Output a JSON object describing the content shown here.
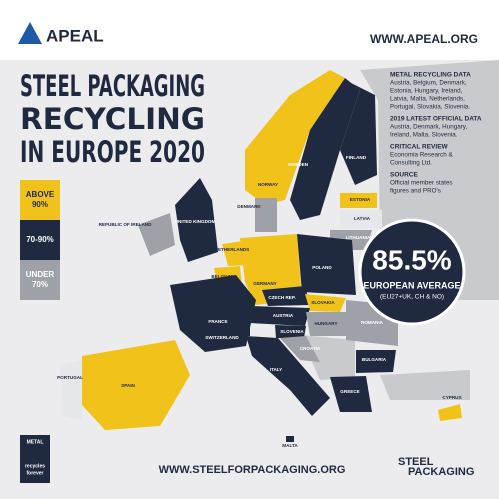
{
  "header": {
    "brand": "APEAL",
    "website": "WWW.APEAL.ORG"
  },
  "title": [
    "STEEL PACKAGING",
    "RECYCLING",
    "IN EUROPE 2020"
  ],
  "legend": [
    {
      "label": [
        "ABOVE",
        "90%"
      ]
    },
    {
      "label": [
        "70-90%"
      ]
    },
    {
      "label": [
        "UNDER",
        "70%"
      ]
    }
  ],
  "notes": [
    {
      "heading": "METAL RECYCLING DATA",
      "text": [
        "Austria, Belgium, Denmark,",
        "Estonia, Hungary, Ireland,",
        "Latvia, Malta, Netherlands,",
        "Portugal, Slovakia, Slovenia."
      ]
    },
    {
      "heading": "2019 LATEST OFFICIAL DATA",
      "text": [
        "Austria, Denmark, Hungary,",
        "Ireland, Malta, Slovenia."
      ]
    },
    {
      "heading": "CRITICAL REVIEW",
      "text": [
        "Economia Research &",
        "Consulting Ltd."
      ]
    },
    {
      "heading": "SOURCE",
      "text": [
        "Official member states",
        "figures and PRO's"
      ]
    }
  ],
  "average": {
    "value": "85.5%",
    "label": "EUROPEAN AVERAGE",
    "note": "(EU27+UK, CH & NO)"
  },
  "countries": [
    "NORWAY",
    "SWEDEN",
    "FINLAND",
    "ESTONIA",
    "LATVIA",
    "LITHUANIA",
    "REPUBLIC OF IRELAND",
    "UNITED KINGDOM",
    "NETHERLANDS",
    "DENMARK",
    "BELGIUM",
    "LUXEMBOURG",
    "GERMANY",
    "POLAND",
    "CZECH REP.",
    "SLOVAKIA",
    "FRANCE",
    "SWITZERLAND",
    "AUSTRIA",
    "SLOVENIA",
    "HUNGARY",
    "ROMANIA",
    "CROATIA",
    "ITALY",
    "BULGARIA",
    "GREECE",
    "PORTUGAL",
    "SPAIN",
    "MALTA",
    "CYPRUS"
  ],
  "footer": {
    "badge": [
      "METAL",
      "recycles",
      "forever"
    ],
    "website": "WWW.STEELFORPACKAGING.ORG",
    "logo": [
      "STEEL",
      "PACKAGING"
    ]
  }
}
